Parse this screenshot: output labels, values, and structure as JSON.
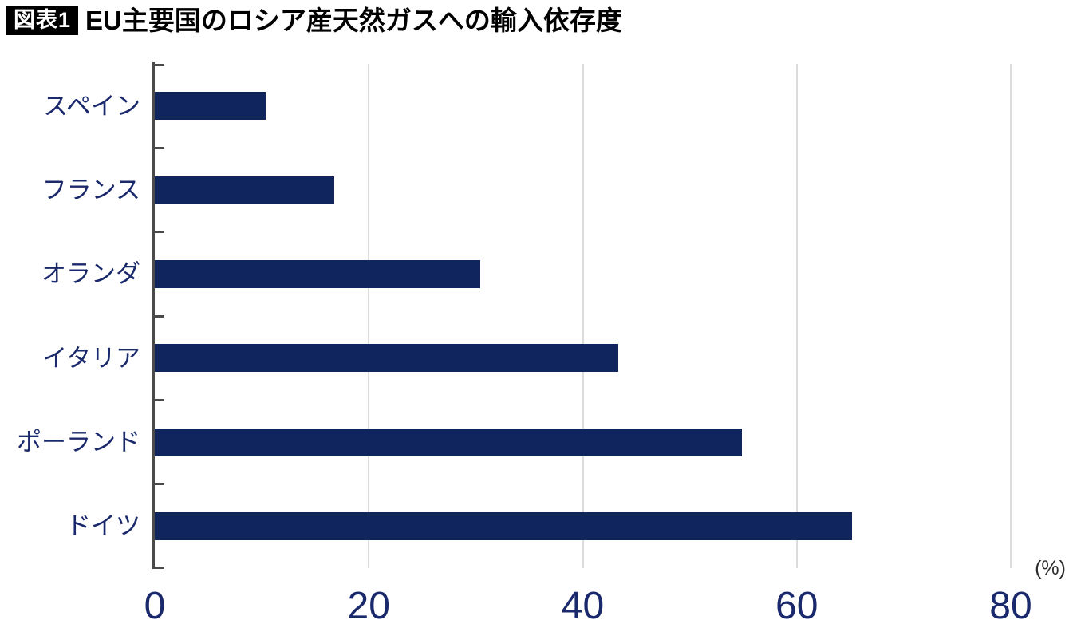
{
  "header": {
    "badge": "図表1",
    "title": "EU主要国のロシア産天然ガスへの輸入依存度"
  },
  "chart_data": {
    "type": "bar",
    "orientation": "horizontal",
    "title": "EU主要国のロシア産天然ガスへの輸入依存度",
    "categories": [
      "スペイン",
      "フランス",
      "オランダ",
      "イタリア",
      "ポーランド",
      "ドイツ"
    ],
    "values": [
      10.4,
      16.8,
      30.4,
      43.3,
      54.9,
      65.2
    ],
    "unit_label": "(%)",
    "xlabel": "(%)",
    "xlim": [
      0,
      80
    ],
    "x_ticks": [
      0,
      20,
      40,
      60,
      80
    ],
    "grid": "vertical gridlines at x ticks",
    "legend": "none",
    "bar_color": "#10245e",
    "label_color": "#1a296b",
    "axis_color": "#4a4a4a",
    "gridline_color": "#dcdcdc"
  }
}
